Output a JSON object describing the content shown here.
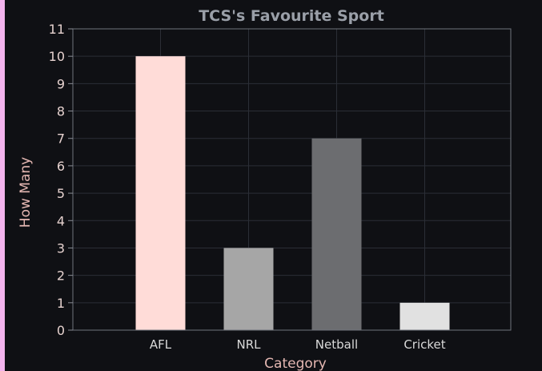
{
  "chart_data": {
    "type": "bar",
    "title": "TCS's Favourite Sport",
    "xlabel": "Category",
    "ylabel": "How Many",
    "categories": [
      "AFL",
      "NRL",
      "Netball",
      "Cricket"
    ],
    "values": [
      10,
      3,
      7,
      1
    ],
    "bar_colors": [
      "#ffdcd8",
      "#a6a6a6",
      "#6c6d70",
      "#e1e1e1"
    ],
    "ylim": [
      0,
      11
    ],
    "yticks": [
      "0",
      "1",
      "2",
      "3",
      "4",
      "5",
      "6",
      "7",
      "8",
      "9",
      "10",
      "11"
    ],
    "grid": true,
    "legend": "none"
  }
}
